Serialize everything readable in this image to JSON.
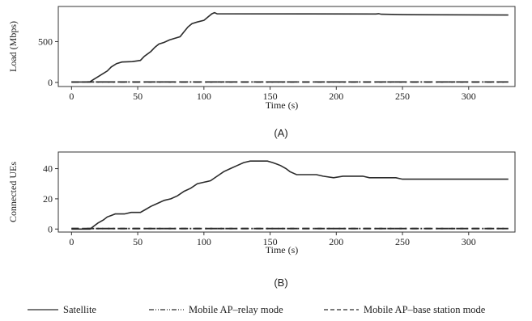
{
  "chart_data": [
    {
      "type": "line",
      "panel_label": "(A)",
      "xlabel": "Time (s)",
      "ylabel": "Load (Mbps)",
      "xlim": [
        -10,
        335
      ],
      "ylim": [
        -50,
        930
      ],
      "xticks": [
        0,
        50,
        100,
        150,
        200,
        250,
        300
      ],
      "yticks": [
        0,
        500
      ],
      "grid": false,
      "series": [
        {
          "name": "Satellite",
          "style": "solid",
          "points": [
            [
              0,
              5
            ],
            [
              10,
              5
            ],
            [
              14,
              8
            ],
            [
              17,
              40
            ],
            [
              20,
              70
            ],
            [
              24,
              110
            ],
            [
              27,
              140
            ],
            [
              30,
              190
            ],
            [
              34,
              230
            ],
            [
              38,
              250
            ],
            [
              46,
              255
            ],
            [
              52,
              270
            ],
            [
              55,
              320
            ],
            [
              60,
              380
            ],
            [
              63,
              430
            ],
            [
              66,
              470
            ],
            [
              70,
              490
            ],
            [
              74,
              520
            ],
            [
              78,
              540
            ],
            [
              82,
              560
            ],
            [
              85,
              620
            ],
            [
              88,
              680
            ],
            [
              91,
              720
            ],
            [
              95,
              740
            ],
            [
              100,
              760
            ],
            [
              103,
              800
            ],
            [
              106,
              840
            ],
            [
              108,
              855
            ],
            [
              110,
              840
            ],
            [
              230,
              838
            ],
            [
              232,
              842
            ],
            [
              234,
              835
            ],
            [
              250,
              830
            ],
            [
              330,
              825
            ]
          ]
        },
        {
          "name": "Mobile AP–relay mode",
          "style": "dashdot",
          "points": [
            [
              0,
              5
            ],
            [
              330,
              5
            ]
          ]
        },
        {
          "name": "Mobile AP–base station mode",
          "style": "dashed",
          "points": [
            [
              0,
              5
            ],
            [
              330,
              5
            ]
          ]
        }
      ]
    },
    {
      "type": "line",
      "panel_label": "(B)",
      "xlabel": "Time (s)",
      "ylabel": "Connected UEs",
      "xlim": [
        -10,
        335
      ],
      "ylim": [
        -2,
        51
      ],
      "xticks": [
        0,
        50,
        100,
        150,
        200,
        250,
        300
      ],
      "yticks": [
        0,
        20,
        40
      ],
      "grid": false,
      "series": [
        {
          "name": "Satellite",
          "style": "solid",
          "points": [
            [
              0,
              0
            ],
            [
              14,
              0
            ],
            [
              17,
              2
            ],
            [
              20,
              4
            ],
            [
              24,
              6
            ],
            [
              27,
              8
            ],
            [
              30,
              9
            ],
            [
              33,
              10
            ],
            [
              40,
              10
            ],
            [
              45,
              11
            ],
            [
              52,
              11
            ],
            [
              56,
              13
            ],
            [
              60,
              15
            ],
            [
              65,
              17
            ],
            [
              70,
              19
            ],
            [
              75,
              20
            ],
            [
              80,
              22
            ],
            [
              85,
              25
            ],
            [
              90,
              27
            ],
            [
              95,
              30
            ],
            [
              100,
              31
            ],
            [
              105,
              32
            ],
            [
              110,
              35
            ],
            [
              115,
              38
            ],
            [
              120,
              40
            ],
            [
              125,
              42
            ],
            [
              130,
              44
            ],
            [
              135,
              45
            ],
            [
              148,
              45
            ],
            [
              152,
              44
            ],
            [
              155,
              43
            ],
            [
              158,
              42
            ],
            [
              162,
              40
            ],
            [
              165,
              38
            ],
            [
              170,
              36
            ],
            [
              185,
              36
            ],
            [
              190,
              35
            ],
            [
              198,
              34
            ],
            [
              205,
              35
            ],
            [
              220,
              35
            ],
            [
              225,
              34
            ],
            [
              245,
              34
            ],
            [
              250,
              33
            ],
            [
              330,
              33
            ]
          ]
        },
        {
          "name": "Mobile AP–relay mode",
          "style": "dashdot",
          "points": [
            [
              0,
              0.3
            ],
            [
              330,
              0.3
            ]
          ]
        },
        {
          "name": "Mobile AP–base station mode",
          "style": "dashed",
          "points": [
            [
              0,
              0.3
            ],
            [
              330,
              0.3
            ]
          ]
        }
      ]
    }
  ],
  "legend": {
    "placement": "bottom",
    "items": [
      {
        "label": "Satellite",
        "style": "solid"
      },
      {
        "label": "Mobile AP–relay mode",
        "style": "dashdot"
      },
      {
        "label": "Mobile AP–base station mode",
        "style": "dashed"
      }
    ]
  },
  "colors": {
    "line": "#2b2b2b",
    "axis": "#333333"
  }
}
